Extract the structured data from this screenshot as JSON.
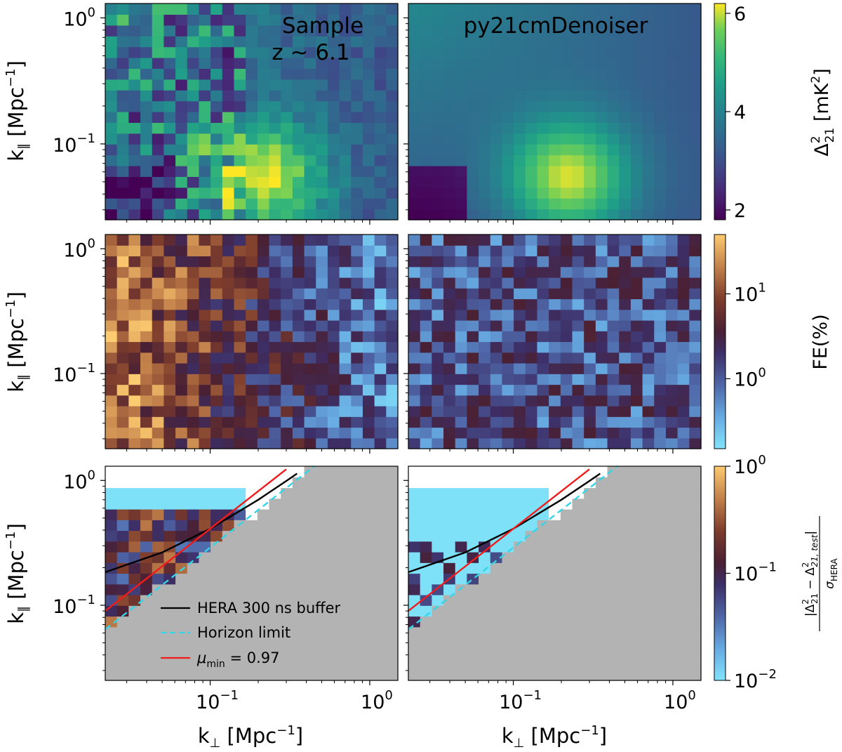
{
  "figure": {
    "type": "heatmap-grid",
    "rows": 3,
    "cols": 2
  },
  "chart_data": {
    "type": "heatmap",
    "xlabel": "k⊥ [Mpc⁻¹]",
    "ylabel": "k∥ [Mpc⁻¹]",
    "xscale": "log",
    "yscale": "log",
    "xlim": [
      0.022,
      1.5
    ],
    "ylim": [
      0.025,
      1.3
    ],
    "x_ticks": [
      {
        "value": 0.1,
        "base": "10",
        "exp": "−1"
      },
      {
        "value": 1.0,
        "base": "10",
        "exp": "0"
      }
    ],
    "y_ticks": [
      {
        "value": 0.1,
        "base": "10",
        "exp": "−1"
      },
      {
        "value": 1.0,
        "base": "10",
        "exp": "0"
      }
    ],
    "columns": [
      {
        "title": "Sample",
        "subtitle": "z ~ 6.1"
      },
      {
        "title": "py21cmDenoiser",
        "subtitle": ""
      }
    ],
    "rows": [
      {
        "quantity": "Δ²₂₁",
        "colorbar": {
          "label": "Δ²₂₁ [mK²]",
          "label_main": "Δ",
          "label_sup": "2",
          "label_sub": "21",
          "label_unit": " [mK",
          "label_unit_sup": "2",
          "label_close": "]",
          "colormap": "viridis",
          "scale": "linear",
          "range": [
            1.8,
            6.2
          ],
          "ticks": [
            {
              "value": 2,
              "text": "2"
            },
            {
              "value": 4,
              "text": "4"
            },
            {
              "value": 6,
              "text": "6"
            }
          ]
        }
      },
      {
        "quantity": "FE",
        "colorbar": {
          "label": "FE(%)",
          "colormap": "managua",
          "scale": "log",
          "range": [
            0.15,
            50
          ],
          "ticks": [
            {
              "value": 1,
              "base": "10",
              "exp": "0"
            },
            {
              "value": 10,
              "base": "10",
              "exp": "1"
            }
          ]
        }
      },
      {
        "quantity": "normalized residual",
        "colorbar": {
          "label": "|Δ²₂₁ − Δ²₂₁,test| / σ_HERA",
          "numerator": "|Δ",
          "num_sup": "2",
          "num_sub": "21",
          "num_mid": " − Δ",
          "num_sup2": "2",
          "num_sub2": "21, test",
          "num_close": "|",
          "denominator": "σ",
          "den_sub": "HERA",
          "colormap": "managua",
          "scale": "log",
          "range": [
            0.01,
            1
          ],
          "ticks": [
            {
              "value": 0.01,
              "base": "10",
              "exp": "−2"
            },
            {
              "value": 0.1,
              "base": "10",
              "exp": "−1"
            },
            {
              "value": 1,
              "base": "10",
              "exp": "0"
            }
          ]
        }
      }
    ],
    "overlays": {
      "excluded_region_color": "#b3b3b3",
      "masked_color": "#7fe1f7",
      "lines": [
        {
          "name": "HERA 300 ns buffer",
          "color": "#000000",
          "style": "solid",
          "model": "k_par = 2.9 k_perp + 0.12",
          "x": [
            0.022,
            0.05,
            0.1,
            0.2,
            0.3,
            0.35
          ],
          "y": [
            0.184,
            0.265,
            0.41,
            0.7,
            0.99,
            1.135
          ]
        },
        {
          "name": "Horizon limit",
          "color": "#33d6e6",
          "style": "dashed",
          "model": "k_par = 2.9 k_perp",
          "x": [
            0.022,
            0.1,
            0.2,
            0.3,
            0.4,
            0.45
          ],
          "y": [
            0.064,
            0.29,
            0.58,
            0.87,
            1.16,
            1.3
          ]
        },
        {
          "name": "μmin = 0.97",
          "color": "#ee1c1c",
          "style": "solid",
          "model": "k_par = 4.1 k_perp",
          "x": [
            0.022,
            0.1,
            0.2,
            0.3
          ],
          "y": [
            0.09,
            0.41,
            0.82,
            1.23
          ]
        }
      ],
      "legend": {
        "location": "lower-left",
        "entries": [
          {
            "label": "HERA 300 ns buffer"
          },
          {
            "label": "Horizon limit"
          },
          {
            "label_main": "μ",
            "label_sub": "min",
            "label_rest": " = 0.97"
          }
        ]
      }
    }
  }
}
